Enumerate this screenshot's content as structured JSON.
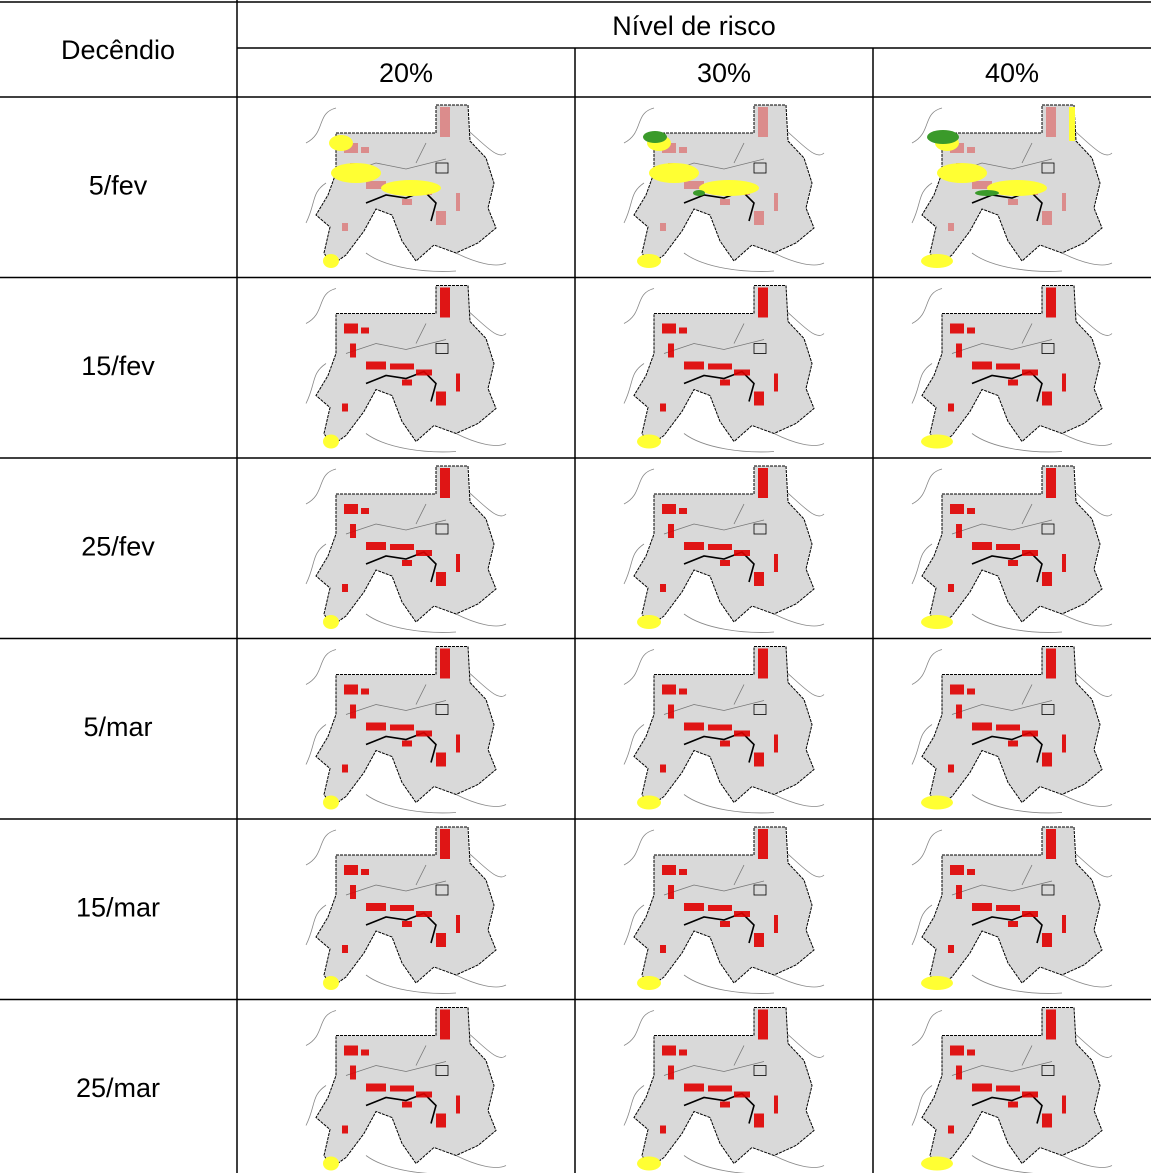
{
  "header": {
    "row_label": "Decêndio",
    "group": "Nível de risco",
    "levels": [
      "20%",
      "30%",
      "40%"
    ]
  },
  "rows": [
    "5/fev",
    "15/fev",
    "25/fev",
    "5/mar",
    "15/mar",
    "25/mar"
  ]
}
